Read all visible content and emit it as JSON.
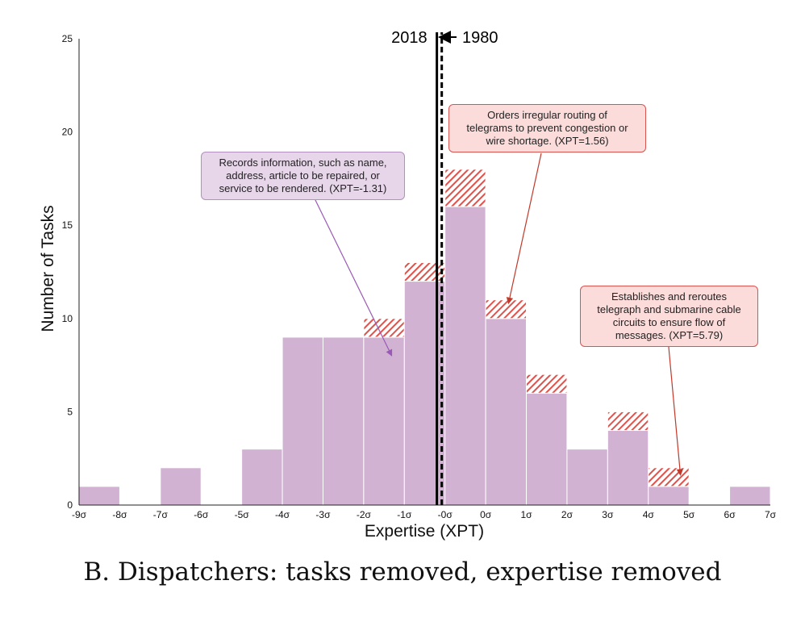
{
  "chart_data": {
    "type": "bar",
    "stacked": true,
    "xlabel": "Expertise (XPT)",
    "ylabel": "Number of Tasks",
    "ylim": [
      0,
      25
    ],
    "yticks": [
      0,
      5,
      10,
      15,
      20,
      25
    ],
    "xlim": [
      -9,
      8
    ],
    "xtick_labels": [
      "-9σ",
      "-8σ",
      "-7σ",
      "-6σ",
      "-5σ",
      "-4σ",
      "-3σ",
      "-2σ",
      "-1σ",
      "-0σ",
      "0σ",
      "1σ",
      "2σ",
      "3σ",
      "4σ",
      "5σ",
      "6σ",
      "7σ"
    ],
    "bin_starts": [
      -9,
      -8,
      -7,
      -6,
      -5,
      -4,
      -3,
      -2,
      -1,
      0,
      1,
      2,
      3,
      4,
      5,
      6,
      7
    ],
    "series": [
      {
        "values": [
          1,
          0,
          2,
          0,
          3,
          9,
          9,
          9,
          12,
          16,
          10,
          6,
          3,
          4,
          1,
          0,
          1
        ],
        "color": "#d1b2d3"
      },
      {
        "values": [
          0,
          0,
          0,
          0,
          0,
          0,
          0,
          1,
          1,
          2,
          1,
          1,
          0,
          1,
          1,
          0,
          0
        ],
        "color": "#e0524c",
        "pattern": "hatch"
      }
    ],
    "vlines": [
      {
        "label": "2018",
        "x": -0.2,
        "style": "solid"
      },
      {
        "label": "1980",
        "x": -0.08,
        "style": "dashed"
      }
    ],
    "annotations": [
      {
        "id": "records",
        "text_lines": [
          "Records information, such as name,",
          "address, article to be repaired, or",
          "service to be rendered. (XPT=-1.31)"
        ],
        "xpt": -1.31,
        "target_y": 8
      },
      {
        "id": "orders",
        "text_lines": [
          "Orders irregular routing of",
          "telegrams to prevent congestion or",
          "wire shortage. (XPT=1.56)"
        ],
        "xpt": 1.56,
        "target_y": 10.8
      },
      {
        "id": "establishes",
        "text_lines": [
          "Establishes and reroutes",
          "telegraph and submarine cable",
          "circuits to ensure flow of",
          "messages. (XPT=5.79)"
        ],
        "xpt": 5.79,
        "target_y": 1.6
      }
    ]
  },
  "caption": "B. Dispatchers: tasks removed, expertise removed",
  "colors": {
    "bar_kept": "#d1b2d3",
    "bar_removed": "#e0524c",
    "note_purple_bg": "#e7d6e9",
    "note_red_bg": "#fbdcdb",
    "arrow_purple": "#9b59b6",
    "arrow_red": "#c0392b"
  }
}
